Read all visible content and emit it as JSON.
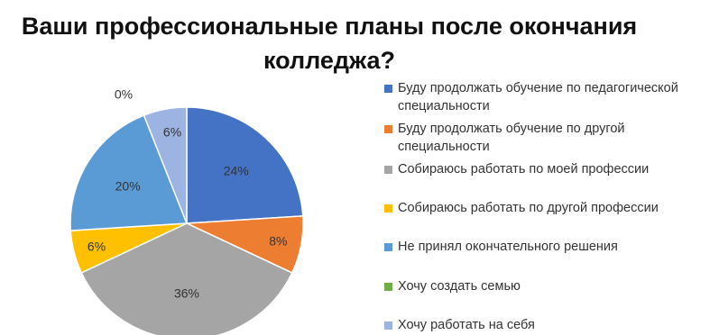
{
  "chart_data": {
    "type": "pie",
    "title": "Ваши профессиональные планы после окончания колледжа?",
    "title_lines": [
      "Ваши профессиональные планы после окончания",
      "колледжа?"
    ],
    "categories": [
      "Буду продолжать обучение по педагогической специальности",
      "Буду продолжать обучение по другой специальности",
      "Собираюсь работать по моей профессии",
      "Собираюсь работать по другой профессии",
      "Не принял окончательного решения",
      "Хочу создать семью",
      "Хочу работать на себя"
    ],
    "values": [
      24,
      8,
      36,
      6,
      20,
      0,
      6
    ],
    "value_labels": [
      "24%",
      "8%",
      "36%",
      "6%",
      "20%",
      "0%",
      "6%"
    ],
    "colors": [
      "#4472C4",
      "#ED7D31",
      "#A5A5A5",
      "#FFC000",
      "#5B9BD5",
      "#70AD47",
      "#9DB3E1"
    ],
    "legend_position": "right"
  }
}
